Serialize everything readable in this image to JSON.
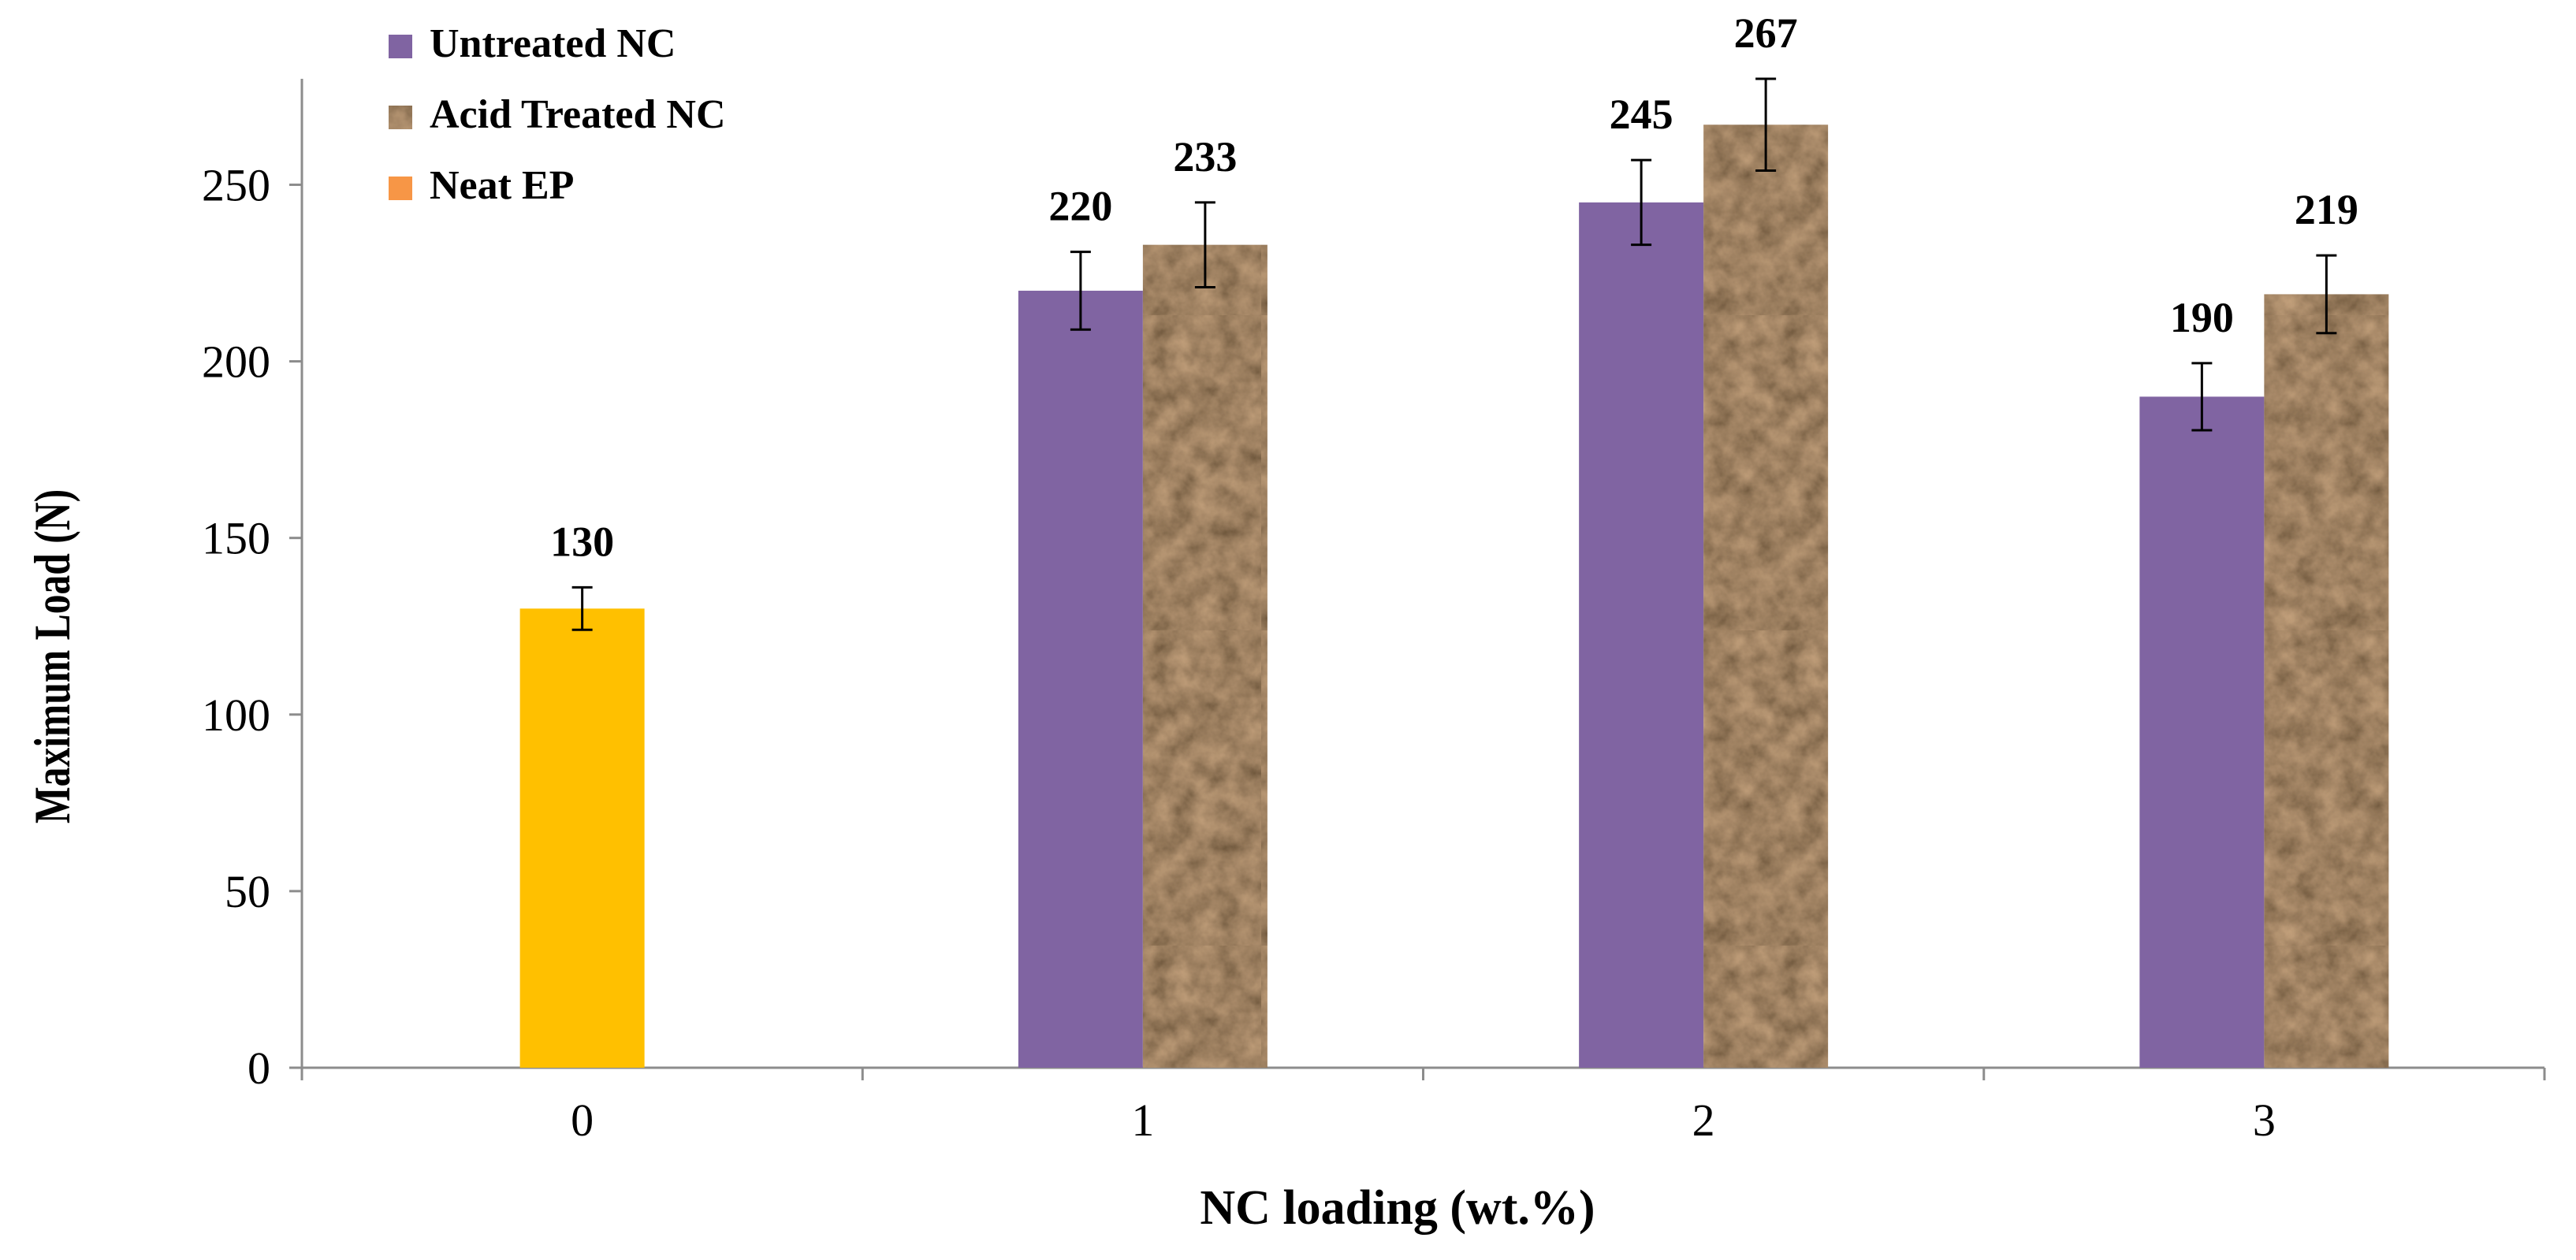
{
  "chart_data": {
    "type": "bar",
    "title": "",
    "xlabel": "NC loading (wt.%)",
    "ylabel": "Maximum Load (N)",
    "ylim": [
      0,
      280
    ],
    "yticks": [
      0,
      50,
      100,
      150,
      200,
      250
    ],
    "categories": [
      "0",
      "1",
      "2",
      "3"
    ],
    "grid": false,
    "legend_position": "top-left",
    "series": [
      {
        "name": "Untreated NC",
        "color": "#8064A2",
        "values": [
          null,
          220,
          245,
          190
        ],
        "errors": [
          null,
          11,
          12,
          9.5
        ],
        "value_labels": [
          "",
          "220",
          "245",
          "190"
        ]
      },
      {
        "name": "Acid Treated NC",
        "color": "#4A2E1F",
        "pattern": "brown-marble-texture",
        "values": [
          null,
          233,
          267,
          219
        ],
        "errors": [
          null,
          12,
          13,
          11
        ],
        "value_labels": [
          "",
          "233",
          "267",
          "219"
        ]
      },
      {
        "name": "Neat EP",
        "color": "#F79646",
        "bar_color": "#FFC000",
        "values": [
          130,
          null,
          null,
          null
        ],
        "errors": [
          6,
          null,
          null,
          null
        ],
        "value_labels": [
          "130",
          "",
          "",
          ""
        ]
      }
    ]
  }
}
